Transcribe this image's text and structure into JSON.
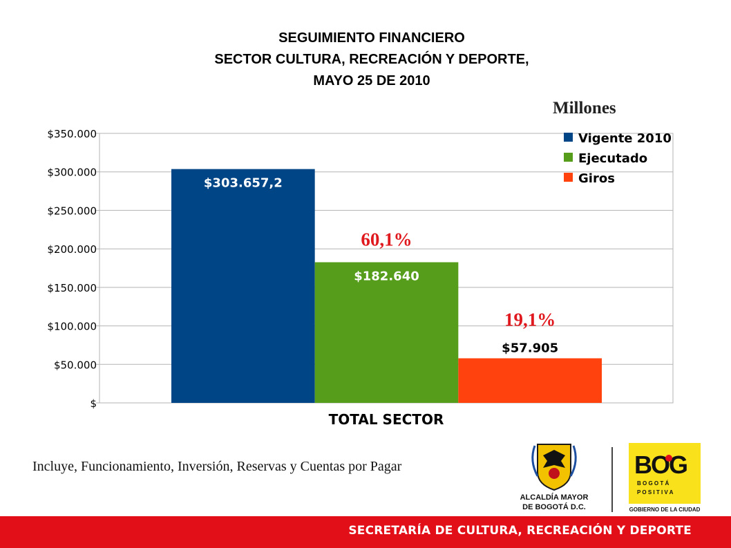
{
  "title": {
    "line1": "SEGUIMIENTO FINANCIERO",
    "line2": "SECTOR CULTURA, RECREACIÓN Y DEPORTE,",
    "line3": "MAYO 25 DE 2010"
  },
  "units_label": "Millones",
  "chart_data": {
    "type": "bar",
    "categories": [
      "TOTAL SECTOR"
    ],
    "xlabel": "TOTAL SECTOR",
    "ylim": [
      0,
      350000
    ],
    "y_ticks": [
      0,
      50000,
      100000,
      150000,
      200000,
      250000,
      300000,
      350000
    ],
    "y_tick_labels": [
      "$",
      "$50.000",
      "$100.000",
      "$150.000",
      "$200.000",
      "$250.000",
      "$300.000",
      "$350.000"
    ],
    "grid": true,
    "legend_position": "top-right",
    "series": [
      {
        "name": "Vigente 2010",
        "values": [
          303657.2
        ],
        "color": "#004586",
        "data_label": "$303.657,2",
        "label_color": "#ffffff",
        "label_place": "inside"
      },
      {
        "name": "Ejecutado",
        "values": [
          182640
        ],
        "color": "#579d1c",
        "data_label": "$182.640",
        "label_color": "#ffffff",
        "label_place": "inside",
        "percent": "60,1%"
      },
      {
        "name": "Giros",
        "values": [
          57905
        ],
        "color": "#ff420e",
        "data_label": "$57.905",
        "label_color": "#000000",
        "label_place": "above",
        "percent": "19,1%"
      }
    ],
    "percent_color": "#e0191e"
  },
  "note": "Incluye, Funcionamiento, Inversión, Reservas y Cuentas por Pagar",
  "logos": {
    "alcaldia_line1": "ALCALDÍA MAYOR",
    "alcaldia_line2": "DE BOGOTÁ D.C.",
    "bog_mark": "BOG",
    "bog_line1": "B O G O T Á",
    "bog_line2": "P O S I T I V A",
    "bog_caption": "GOBIERNO DE LA CIUDAD"
  },
  "footer": "SECRETARÍA DE CULTURA, RECREACIÓN Y DEPORTE"
}
